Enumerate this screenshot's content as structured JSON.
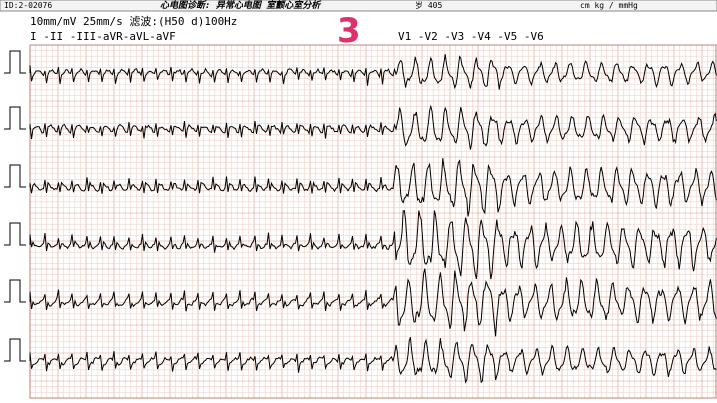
{
  "header": {
    "id": "ID:2-02076",
    "diagnosis": "心电图诊断: 异常心电图  室颤心室分析",
    "age": "岁 405",
    "units": "cm  kg  / mmHg"
  },
  "settings": "10mm/mV 25mm/s 滤波:(H50 d)100Hz",
  "leads_left": "I  -II -III-aVR-aVL-aVF",
  "leads_right": "V1 -V2 -V3 -V4 -V5 -V6",
  "marker": "3"
}
